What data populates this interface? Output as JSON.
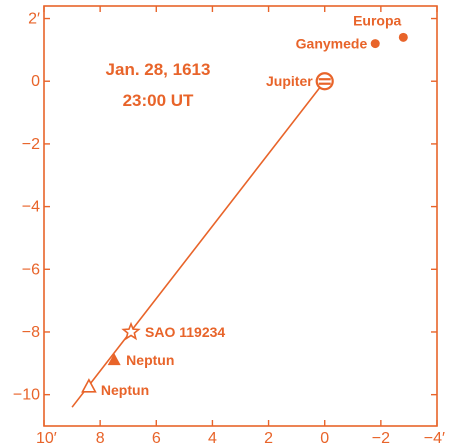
{
  "chart_data": {
    "type": "scatter",
    "title": "",
    "xlabel": "",
    "ylabel": "",
    "xlim": [
      10,
      -4
    ],
    "ylim": [
      -11,
      2.4
    ],
    "x_tick_labels": [
      {
        "x": 10,
        "label": "10′"
      },
      {
        "x": 8,
        "label": "8"
      },
      {
        "x": 6,
        "label": "6"
      },
      {
        "x": 4,
        "label": "4"
      },
      {
        "x": 2,
        "label": "2"
      },
      {
        "x": 0,
        "label": "0"
      },
      {
        "x": -2,
        "label": "−2"
      },
      {
        "x": -4,
        "label": "−4′"
      }
    ],
    "y_tick_labels": [
      {
        "y": 2,
        "label": "2′"
      },
      {
        "y": 0,
        "label": "0"
      },
      {
        "y": -2,
        "label": "−2"
      },
      {
        "y": -4,
        "label": "−4"
      },
      {
        "y": -6,
        "label": "−6"
      },
      {
        "y": -8,
        "label": "−8"
      },
      {
        "y": -10,
        "label": "−10"
      }
    ],
    "annotation_lines": [
      "Jan. 28, 1613",
      "23:00 UT"
    ],
    "line": {
      "from": [
        0,
        0
      ],
      "to": [
        9.0,
        -10.4
      ]
    },
    "points": [
      {
        "label": "Europa",
        "x": -2.8,
        "y": 1.4,
        "marker": "dot"
      },
      {
        "label": "Ganymede",
        "x": -1.8,
        "y": 1.2,
        "marker": "dot"
      },
      {
        "label": "Jupiter",
        "x": 0.0,
        "y": 0.0,
        "marker": "jupiter"
      },
      {
        "label": "SAO 119234",
        "x": 6.9,
        "y": -8.0,
        "marker": "star"
      },
      {
        "label": "Neptun",
        "x": 7.5,
        "y": -8.9,
        "marker": "filled-triangle"
      },
      {
        "label": "Neptun",
        "x": 8.4,
        "y": -9.75,
        "marker": "open-triangle"
      }
    ],
    "grid": false,
    "legend": "none"
  }
}
